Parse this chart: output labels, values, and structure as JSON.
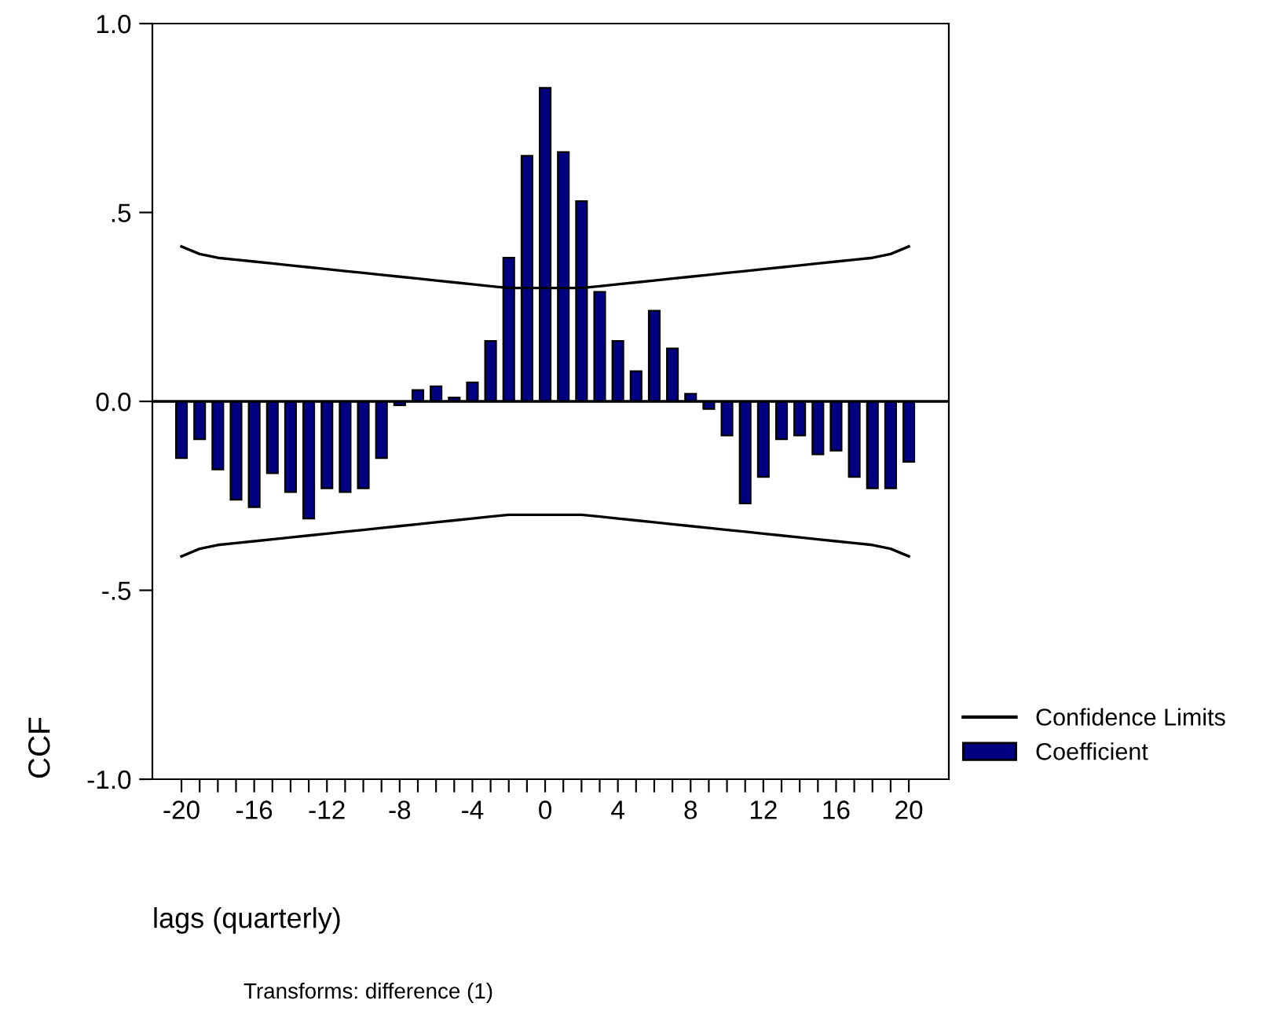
{
  "chart_data": {
    "type": "bar",
    "x": [
      -20,
      -19,
      -18,
      -17,
      -16,
      -15,
      -14,
      -13,
      -12,
      -11,
      -10,
      -9,
      -8,
      -7,
      -6,
      -5,
      -4,
      -3,
      -2,
      -1,
      0,
      1,
      2,
      3,
      4,
      5,
      6,
      7,
      8,
      9,
      10,
      11,
      12,
      13,
      14,
      15,
      16,
      17,
      18,
      19,
      20
    ],
    "series": [
      {
        "name": "Coefficient",
        "type": "bar",
        "color": "#000080",
        "values": [
          -0.15,
          -0.1,
          -0.18,
          -0.26,
          -0.28,
          -0.19,
          -0.24,
          -0.31,
          -0.23,
          -0.24,
          -0.23,
          -0.15,
          -0.01,
          0.03,
          0.04,
          0.01,
          0.05,
          0.16,
          0.38,
          0.65,
          0.83,
          0.66,
          0.53,
          0.29,
          0.16,
          0.08,
          0.24,
          0.14,
          0.02,
          -0.02,
          -0.09,
          -0.27,
          -0.2,
          -0.1,
          -0.09,
          -0.14,
          -0.13,
          -0.2,
          -0.23,
          -0.23,
          -0.16
        ]
      },
      {
        "name": "Confidence Limits",
        "type": "line",
        "color": "#000000",
        "values": [
          0.41,
          0.39,
          0.38,
          0.375,
          0.37,
          0.365,
          0.36,
          0.355,
          0.35,
          0.345,
          0.34,
          0.335,
          0.33,
          0.325,
          0.32,
          0.315,
          0.31,
          0.305,
          0.3,
          0.3,
          0.3,
          0.3,
          0.3,
          0.305,
          0.31,
          0.315,
          0.32,
          0.325,
          0.33,
          0.335,
          0.34,
          0.345,
          0.35,
          0.355,
          0.36,
          0.365,
          0.37,
          0.375,
          0.38,
          0.39,
          0.41
        ]
      },
      {
        "type": "line",
        "color": "#000000",
        "values": [
          -0.41,
          -0.39,
          -0.38,
          -0.375,
          -0.37,
          -0.365,
          -0.36,
          -0.355,
          -0.35,
          -0.345,
          -0.34,
          -0.335,
          -0.33,
          -0.325,
          -0.32,
          -0.315,
          -0.31,
          -0.305,
          -0.3,
          -0.3,
          -0.3,
          -0.3,
          -0.3,
          -0.305,
          -0.31,
          -0.315,
          -0.32,
          -0.325,
          -0.33,
          -0.335,
          -0.34,
          -0.345,
          -0.35,
          -0.355,
          -0.36,
          -0.365,
          -0.37,
          -0.375,
          -0.38,
          -0.39,
          -0.41
        ]
      }
    ],
    "xlabel": "lags (quarterly)",
    "ylabel": "CCF",
    "annotations": [
      "Transforms: difference (1)"
    ],
    "xlim": [
      -21.6,
      22.2
    ],
    "xticks": [
      -20,
      {
        "value": -19,
        "label": null
      },
      {
        "value": -18,
        "label": null
      },
      {
        "value": -17,
        "label": null
      },
      -16,
      {
        "value": -15,
        "label": null
      },
      {
        "value": -14,
        "label": null
      },
      {
        "value": -13,
        "label": null
      },
      -12,
      {
        "value": -11,
        "label": null
      },
      {
        "value": -10,
        "label": null
      },
      {
        "value": -9,
        "label": null
      },
      -8,
      {
        "value": -7,
        "label": null
      },
      {
        "value": -6,
        "label": null
      },
      {
        "value": -5,
        "label": null
      },
      -4,
      {
        "value": -3,
        "label": null
      },
      {
        "value": -2,
        "label": null
      },
      {
        "value": -1,
        "label": null
      },
      0,
      {
        "value": 1,
        "label": null
      },
      {
        "value": 2,
        "label": null
      },
      {
        "value": 3,
        "label": null
      },
      4,
      {
        "value": 5,
        "label": null
      },
      {
        "value": 6,
        "label": null
      },
      {
        "value": 7,
        "label": null
      },
      8,
      {
        "value": 9,
        "label": null
      },
      {
        "value": 10,
        "label": null
      },
      {
        "value": 11,
        "label": null
      },
      12,
      {
        "value": 13,
        "label": null
      },
      {
        "value": 14,
        "label": null
      },
      {
        "value": 15,
        "label": null
      },
      16,
      {
        "value": 17,
        "label": null
      },
      {
        "value": 18,
        "label": null
      },
      {
        "value": 19,
        "label": null
      },
      20
    ],
    "ylim": [
      -1.0,
      1.0
    ],
    "yticks": [
      {
        "value": -1.0,
        "label": "-1.0"
      },
      {
        "value": -0.5,
        "label": "-.5"
      },
      {
        "value": 0.0,
        "label": "0.0"
      },
      {
        "value": 0.5,
        "label": ".5"
      },
      {
        "value": 1.0,
        "label": "1.0"
      }
    ],
    "ref_lines": [
      {
        "axis": "y",
        "value": 0,
        "color": "#000000"
      }
    ],
    "grid": false,
    "legend": "right",
    "marker": "none",
    "line_style": "solid"
  }
}
